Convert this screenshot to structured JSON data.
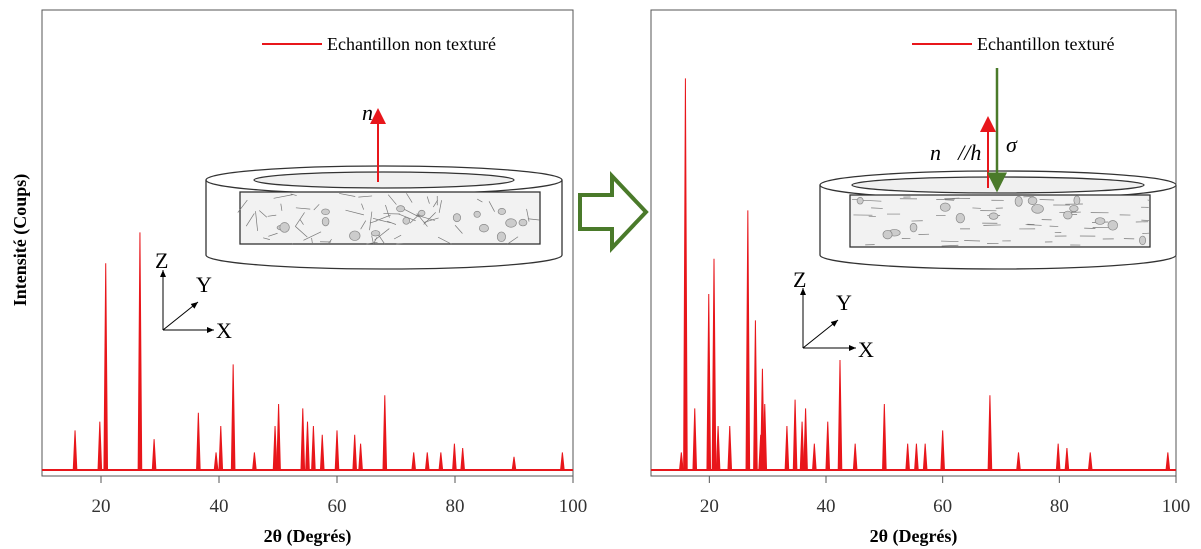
{
  "chart_data": [
    {
      "type": "spectrum",
      "x_label": "2θ (Degrés)",
      "y_label": "Intensité (Coups)",
      "x": [
        15.6,
        19.8,
        20.8,
        26.6,
        29,
        36.5,
        39.5,
        40.3,
        42.4,
        46,
        49.5,
        50.1,
        54.2,
        55,
        56,
        57.5,
        60,
        63,
        64,
        68.1,
        73,
        75.3,
        77.6,
        79.9,
        81.3,
        90,
        98.2
      ],
      "series": [
        {
          "name": "Echantillon non texturé",
          "color": "#e8161b",
          "values": [
            9,
            11,
            47,
            54,
            7,
            13,
            4,
            10,
            24,
            4,
            10,
            15,
            14,
            11,
            10,
            8,
            9,
            8,
            6,
            17,
            4,
            4,
            4,
            6,
            5,
            3,
            4
          ]
        }
      ],
      "xlim": [
        10,
        100
      ],
      "ylim": [
        0,
        100
      ],
      "xticks": [
        20,
        40,
        60,
        80,
        100
      ],
      "annotations": [
        "n⃗",
        "Z",
        "Y",
        "X"
      ]
    },
    {
      "type": "spectrum",
      "x_label": "2θ (Degrés)",
      "x": [
        15.2,
        15.9,
        17.5,
        19.9,
        20.8,
        21.5,
        23.5,
        26.6,
        27.9,
        28.8,
        29.1,
        29.5,
        33.3,
        34.7,
        35.9,
        36.5,
        38,
        40.3,
        42.4,
        45,
        50,
        54,
        55.5,
        57,
        60,
        68.1,
        73,
        79.8,
        81.3,
        85.3,
        98.6
      ],
      "series": [
        {
          "name": "Echantillon texturé",
          "color": "#e8161b",
          "values": [
            4,
            89,
            14,
            40,
            48,
            10,
            10,
            59,
            34,
            8,
            23,
            15,
            10,
            16,
            11,
            14,
            6,
            11,
            25,
            6,
            15,
            6,
            6,
            6,
            9,
            17,
            4,
            6,
            5,
            4,
            4
          ]
        }
      ],
      "xlim": [
        10,
        100
      ],
      "ylim": [
        0,
        100
      ],
      "xticks": [
        20,
        40,
        60,
        80,
        100
      ],
      "annotations": [
        "n⃗//h⃗",
        "σ⃗",
        "Z",
        "Y",
        "X"
      ]
    }
  ]
}
